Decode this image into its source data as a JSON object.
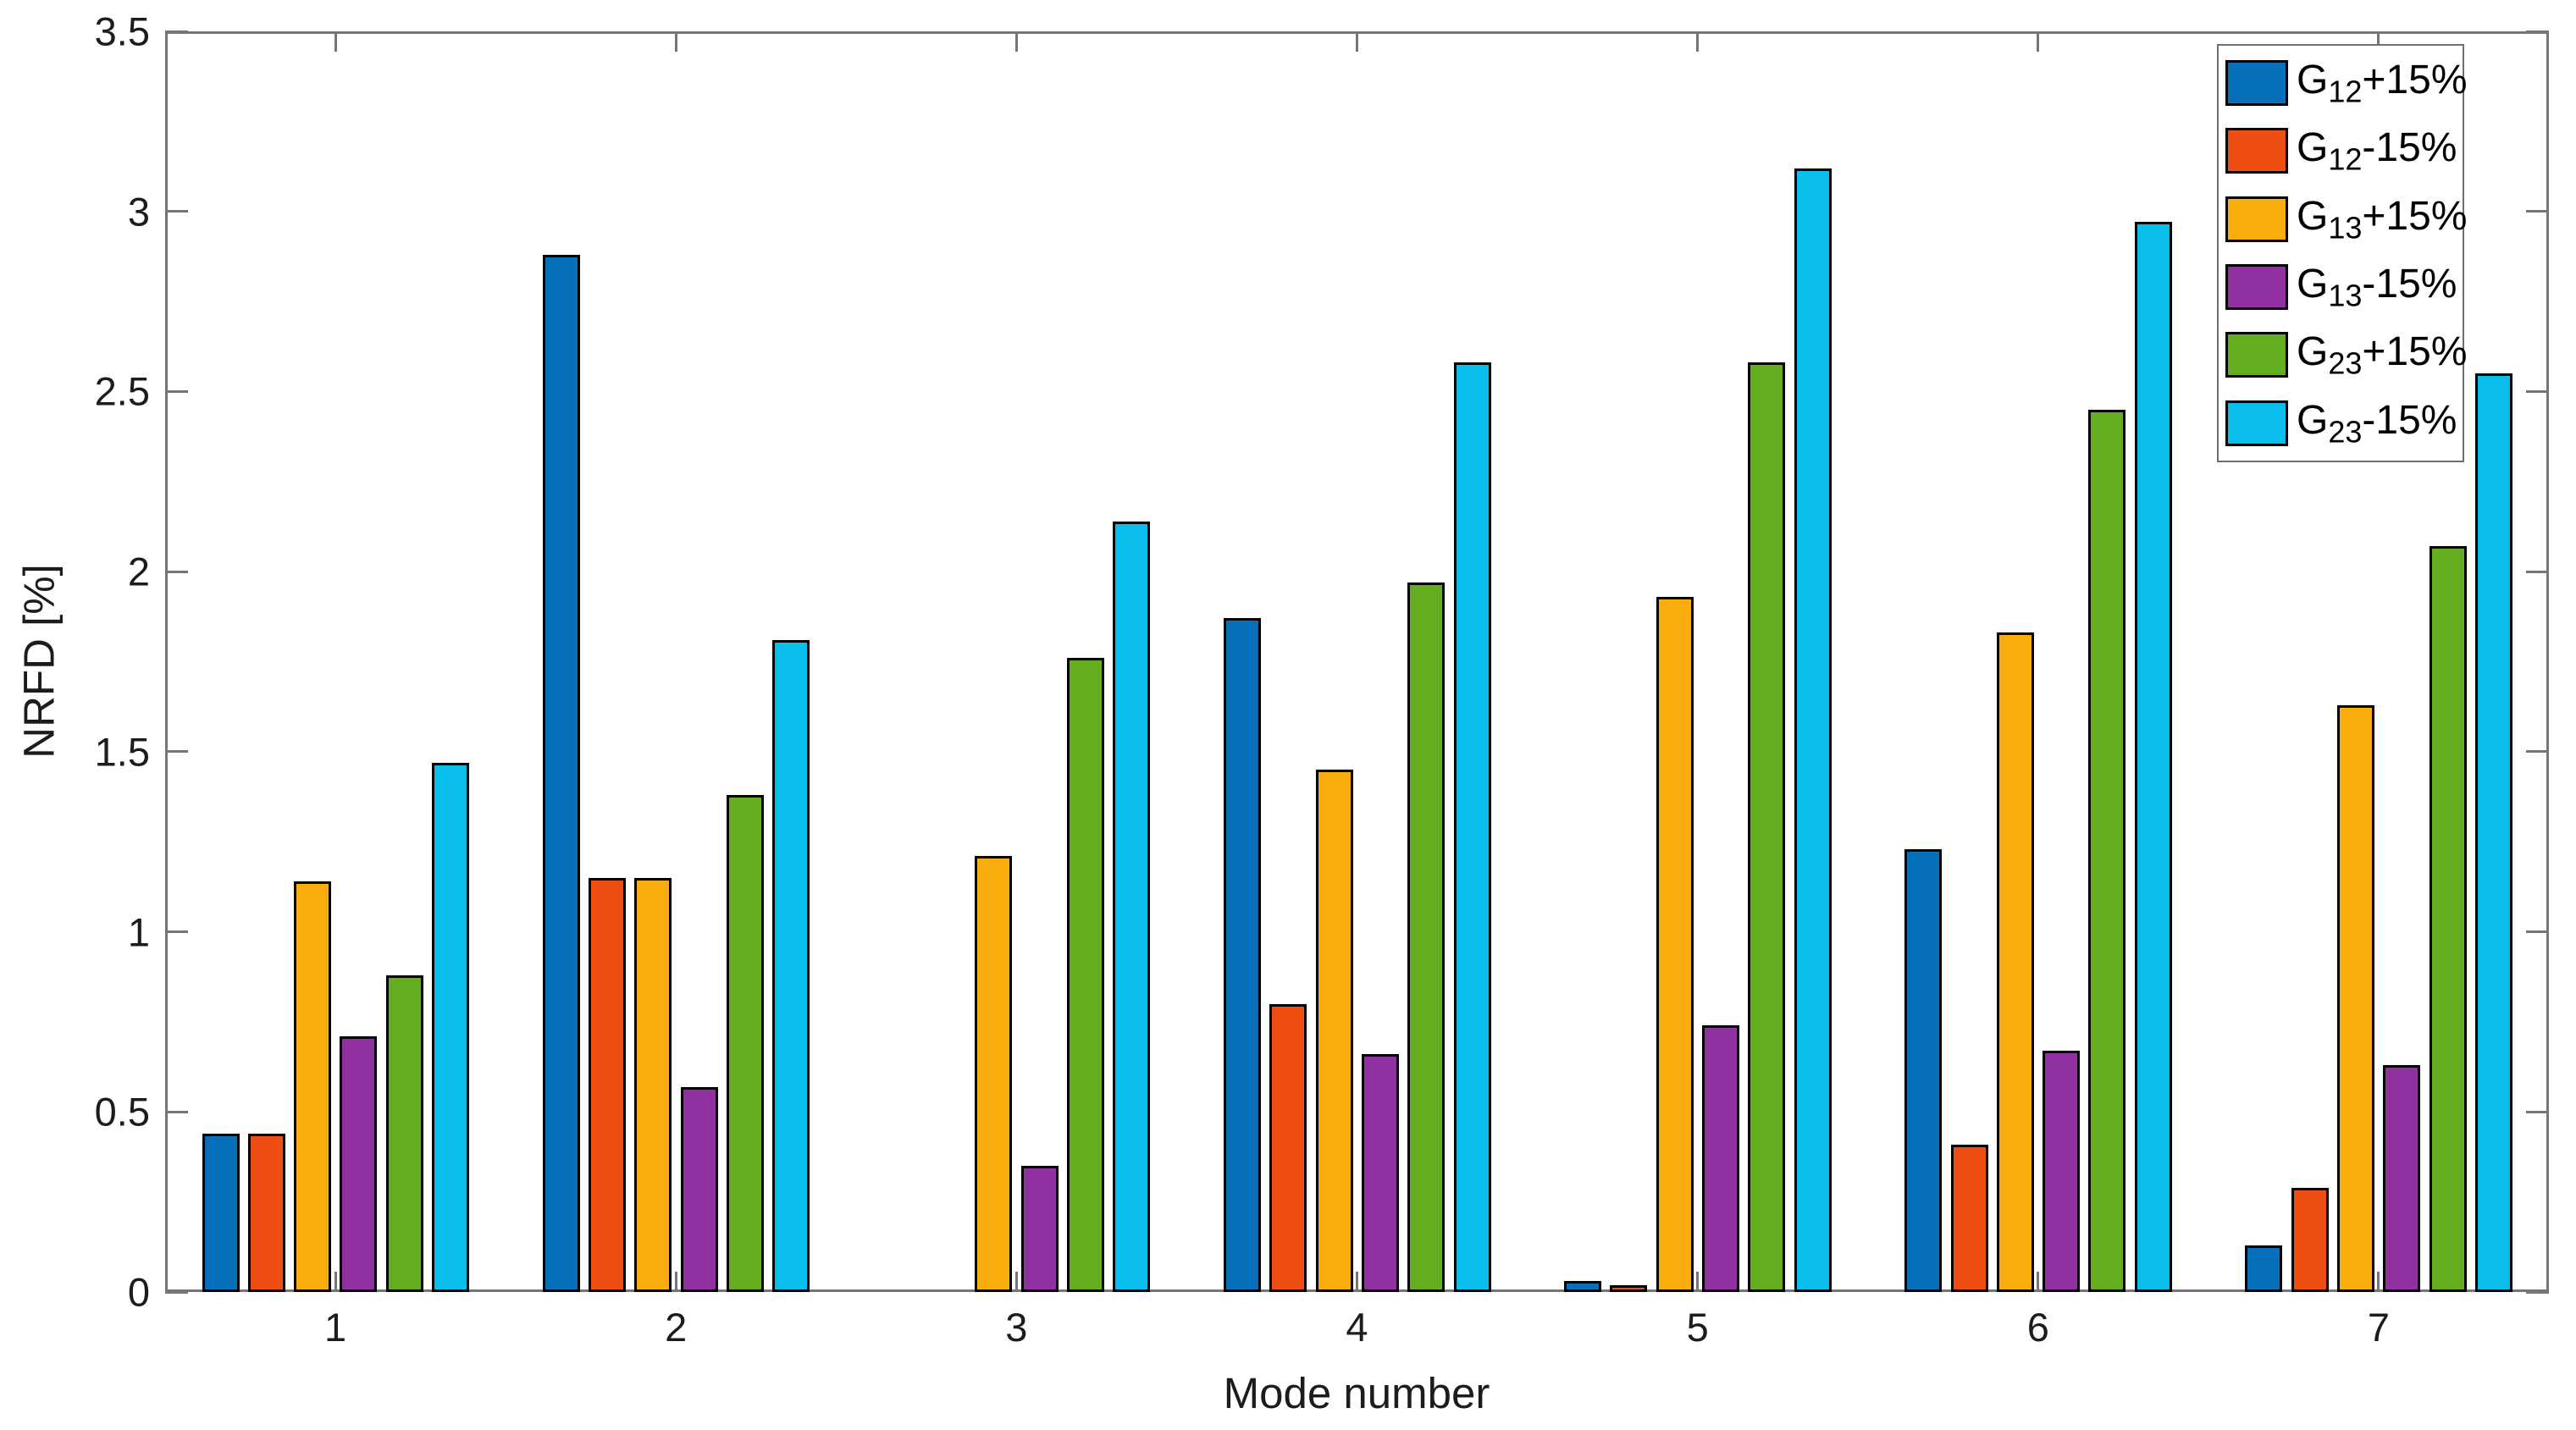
{
  "figure": {
    "background": "#ffffff",
    "axis_color": "#767676",
    "text_color": "#1c1c1c",
    "bar_edge_color": "#000000"
  },
  "chart_data": {
    "type": "bar",
    "title": "",
    "xlabel": "Mode number",
    "ylabel": "NRFD [%]",
    "categories": [
      "1",
      "2",
      "3",
      "4",
      "5",
      "6",
      "7"
    ],
    "series": [
      {
        "name": "G12+15%",
        "label_base": "G",
        "label_sub": "12",
        "label_suffix": "+15%",
        "color": "#0671BA",
        "values": [
          0.44,
          2.88,
          0,
          1.87,
          0.03,
          1.23,
          0.13
        ]
      },
      {
        "name": "G12-15%",
        "label_base": "G",
        "label_sub": "12",
        "label_suffix": "-15%",
        "color": "#EF4E12",
        "values": [
          0.44,
          1.15,
          0,
          0.8,
          0.02,
          0.41,
          0.29
        ]
      },
      {
        "name": "G13+15%",
        "label_base": "G",
        "label_sub": "13",
        "label_suffix": "+15%",
        "color": "#FBAD0E",
        "values": [
          1.14,
          1.15,
          1.21,
          1.45,
          1.93,
          1.83,
          1.63
        ]
      },
      {
        "name": "G13-15%",
        "label_base": "G",
        "label_sub": "13",
        "label_suffix": "-15%",
        "color": "#9130A1",
        "values": [
          0.71,
          0.57,
          0.35,
          0.66,
          0.74,
          0.67,
          0.63
        ]
      },
      {
        "name": "G23+15%",
        "label_base": "G",
        "label_sub": "23",
        "label_suffix": "+15%",
        "color": "#63AD1F",
        "values": [
          0.88,
          1.38,
          1.76,
          1.97,
          2.58,
          2.45,
          2.07
        ]
      },
      {
        "name": "G23-15%",
        "label_base": "G",
        "label_sub": "23",
        "label_suffix": "-15%",
        "color": "#0ABEEC",
        "values": [
          1.47,
          1.81,
          2.14,
          2.58,
          3.12,
          2.97,
          2.55
        ]
      }
    ],
    "ylim": [
      0,
      3.5
    ],
    "yticks": [
      0,
      0.5,
      1,
      1.5,
      2,
      2.5,
      3,
      3.5
    ],
    "ytick_labels": [
      "0",
      "0.5",
      "1",
      "1.5",
      "2",
      "2.5",
      "3",
      "3.5"
    ],
    "grid": false,
    "legend_position": "top-right"
  }
}
